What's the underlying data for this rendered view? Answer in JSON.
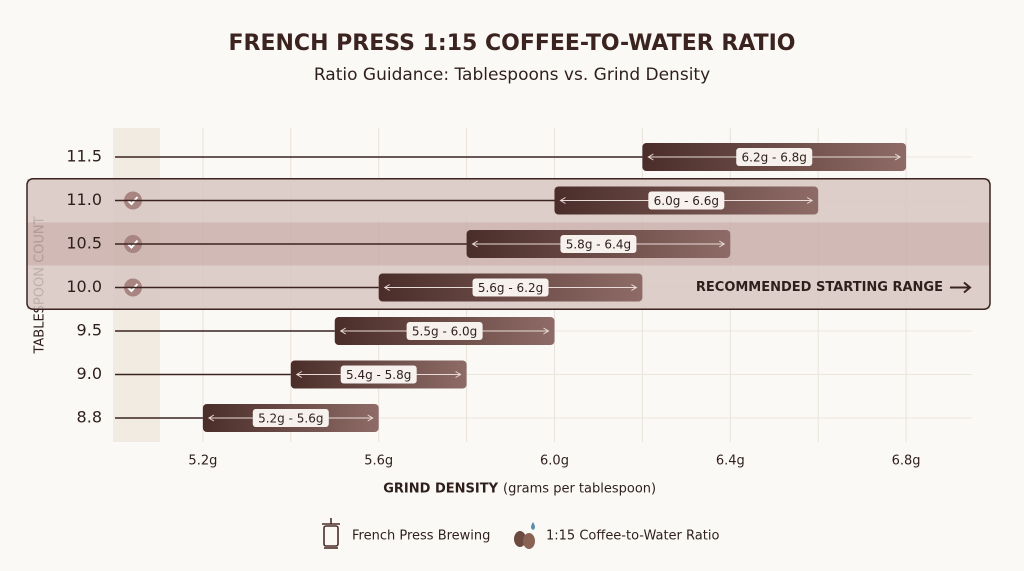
{
  "chart_data": {
    "type": "range-bar",
    "title": "FRENCH PRESS 1:15 COFFEE-TO-WATER RATIO",
    "subtitle": "Ratio Guidance: Tablespoons vs. Grind Density",
    "y_label": "TABLESPOON COUNT",
    "x_label": "GRIND DENSITY",
    "x_label_note": "(grams per tablespoon)",
    "categories": [
      "11.5",
      "11.0",
      "10.5",
      "10.0",
      "9.5",
      "9.0",
      "8.8"
    ],
    "starts": [
      6.2,
      6.0,
      5.8,
      5.6,
      5.5,
      5.4,
      5.2
    ],
    "ends": [
      6.8,
      6.6,
      6.4,
      6.2,
      6.0,
      5.8,
      5.6
    ],
    "value_labels": [
      "6.2g - 6.8g",
      "6.0g - 6.6g",
      "5.8g - 6.4g",
      "5.6g - 6.2g",
      "5.5g - 6.0g",
      "5.4g - 5.8g",
      "5.2g - 5.6g"
    ],
    "colors": [
      "#4a2d29",
      "#8e6b66"
    ],
    "xlim": [
      5.0,
      6.95
    ],
    "xticks": [
      {
        "value": 5.2,
        "label": "5.2g"
      },
      {
        "value": 5.6,
        "label": "5.6g"
      },
      {
        "value": 6.0,
        "label": "6.0g"
      },
      {
        "value": 6.4,
        "label": "6.4g"
      },
      {
        "value": 6.8,
        "label": "6.8g"
      }
    ],
    "minor_xticks": [
      5.4,
      5.8,
      6.2,
      6.6
    ],
    "grid": true,
    "highlight": {
      "label": "RECOMMENDED STARTING RANGE",
      "rows": [
        1,
        2,
        3
      ]
    },
    "legend": [
      "French Press Brewing",
      "1:15 Coffee-to-Water Ratio"
    ]
  }
}
